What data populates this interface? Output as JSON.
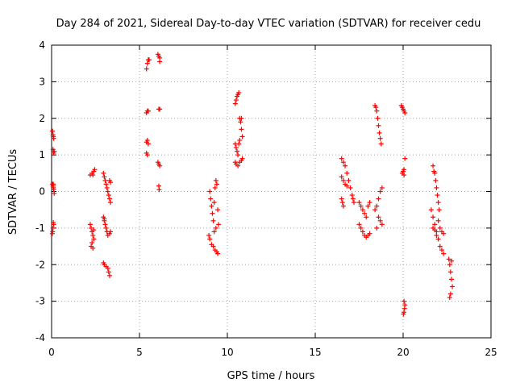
{
  "chart_data": {
    "type": "scatter",
    "title": "Day 284 of 2021, Sidereal Day-to-day VTEC variation (SDTVAR) for receiver cedu",
    "xlabel": "GPS time / hours",
    "ylabel": "SDTVAR / TECUs",
    "xlim": [
      0,
      25
    ],
    "ylim": [
      -4,
      4
    ],
    "x_ticks": [
      0,
      5,
      10,
      15,
      20,
      25
    ],
    "y_ticks": [
      -4,
      -3,
      -2,
      -1,
      0,
      1,
      2,
      3,
      4
    ],
    "grid": true,
    "marker": "plus",
    "color": "#ff0000",
    "series": [
      {
        "name": "SDTVAR",
        "points": [
          [
            0.05,
            1.65
          ],
          [
            0.08,
            1.55
          ],
          [
            0.1,
            1.5
          ],
          [
            0.12,
            1.45
          ],
          [
            0.08,
            1.15
          ],
          [
            0.1,
            1.1
          ],
          [
            0.12,
            1.05
          ],
          [
            0.15,
            1.1
          ],
          [
            0.05,
            0.2
          ],
          [
            0.08,
            0.15
          ],
          [
            0.1,
            0.1
          ],
          [
            0.12,
            0.05
          ],
          [
            0.15,
            -0.05
          ],
          [
            0.1,
            0.2
          ],
          [
            0.1,
            -0.85
          ],
          [
            0.12,
            -0.9
          ],
          [
            0.08,
            -1.0
          ],
          [
            0.06,
            -1.1
          ],
          [
            0.04,
            -1.15
          ],
          [
            2.2,
            0.45
          ],
          [
            2.3,
            0.5
          ],
          [
            2.4,
            0.55
          ],
          [
            2.45,
            0.6
          ],
          [
            2.35,
            0.45
          ],
          [
            2.2,
            -0.9
          ],
          [
            2.25,
            -1.0
          ],
          [
            2.3,
            -1.1
          ],
          [
            2.35,
            -1.2
          ],
          [
            2.4,
            -1.3
          ],
          [
            2.3,
            -1.4
          ],
          [
            2.25,
            -1.5
          ],
          [
            2.35,
            -1.55
          ],
          [
            2.4,
            -1.05
          ],
          [
            2.95,
            0.5
          ],
          [
            3.0,
            0.4
          ],
          [
            3.05,
            0.3
          ],
          [
            3.1,
            0.2
          ],
          [
            3.15,
            0.1
          ],
          [
            3.2,
            0.0
          ],
          [
            3.25,
            -0.1
          ],
          [
            3.3,
            -0.2
          ],
          [
            3.35,
            -0.3
          ],
          [
            3.3,
            0.3
          ],
          [
            3.35,
            0.25
          ],
          [
            2.95,
            -0.7
          ],
          [
            3.0,
            -0.8
          ],
          [
            3.05,
            -0.9
          ],
          [
            3.1,
            -1.0
          ],
          [
            3.15,
            -1.1
          ],
          [
            3.2,
            -1.2
          ],
          [
            3.3,
            -1.15
          ],
          [
            3.35,
            -1.1
          ],
          [
            3.0,
            -0.75
          ],
          [
            2.95,
            -1.95
          ],
          [
            3.0,
            -2.0
          ],
          [
            3.1,
            -2.05
          ],
          [
            3.2,
            -2.1
          ],
          [
            3.25,
            -2.2
          ],
          [
            3.3,
            -2.3
          ],
          [
            5.4,
            3.35
          ],
          [
            5.45,
            3.5
          ],
          [
            5.5,
            3.6
          ],
          [
            5.55,
            3.6
          ],
          [
            5.4,
            2.15
          ],
          [
            5.45,
            2.2
          ],
          [
            5.5,
            2.2
          ],
          [
            5.4,
            1.35
          ],
          [
            5.45,
            1.4
          ],
          [
            5.5,
            1.3
          ],
          [
            5.4,
            1.05
          ],
          [
            5.45,
            1.0
          ],
          [
            6.05,
            3.75
          ],
          [
            6.1,
            3.7
          ],
          [
            6.15,
            3.65
          ],
          [
            6.15,
            3.55
          ],
          [
            6.1,
            2.25
          ],
          [
            6.15,
            2.25
          ],
          [
            6.05,
            0.8
          ],
          [
            6.1,
            0.75
          ],
          [
            6.15,
            0.7
          ],
          [
            6.1,
            0.15
          ],
          [
            6.12,
            0.05
          ],
          [
            9.0,
            0.0
          ],
          [
            9.05,
            -0.2
          ],
          [
            9.1,
            -0.4
          ],
          [
            9.15,
            -0.6
          ],
          [
            9.2,
            -0.8
          ],
          [
            9.25,
            -0.3
          ],
          [
            9.3,
            0.1
          ],
          [
            9.35,
            0.3
          ],
          [
            9.4,
            0.2
          ],
          [
            9.45,
            -0.5
          ],
          [
            9.5,
            -0.9
          ],
          [
            8.95,
            -1.2
          ],
          [
            9.0,
            -1.3
          ],
          [
            9.1,
            -1.45
          ],
          [
            9.2,
            -1.5
          ],
          [
            9.3,
            -1.6
          ],
          [
            9.4,
            -1.65
          ],
          [
            9.45,
            -1.7
          ],
          [
            9.35,
            -1.0
          ],
          [
            9.25,
            -1.1
          ],
          [
            10.45,
            2.4
          ],
          [
            10.5,
            2.5
          ],
          [
            10.55,
            2.6
          ],
          [
            10.6,
            2.65
          ],
          [
            10.65,
            2.7
          ],
          [
            10.7,
            2.0
          ],
          [
            10.75,
            1.9
          ],
          [
            10.8,
            1.7
          ],
          [
            10.85,
            1.5
          ],
          [
            10.8,
            2.0
          ],
          [
            10.45,
            1.3
          ],
          [
            10.5,
            1.2
          ],
          [
            10.55,
            1.1
          ],
          [
            10.6,
            1.0
          ],
          [
            10.65,
            1.3
          ],
          [
            10.7,
            1.4
          ],
          [
            10.45,
            0.8
          ],
          [
            10.5,
            0.75
          ],
          [
            10.6,
            0.7
          ],
          [
            10.7,
            0.8
          ],
          [
            10.8,
            0.85
          ],
          [
            10.85,
            0.9
          ],
          [
            16.5,
            0.9
          ],
          [
            16.6,
            0.8
          ],
          [
            16.7,
            0.7
          ],
          [
            16.8,
            0.5
          ],
          [
            16.9,
            0.3
          ],
          [
            17.0,
            0.1
          ],
          [
            17.1,
            -0.1
          ],
          [
            17.15,
            -0.2
          ],
          [
            17.2,
            -0.3
          ],
          [
            16.5,
            0.4
          ],
          [
            16.6,
            0.3
          ],
          [
            16.7,
            0.2
          ],
          [
            16.8,
            0.15
          ],
          [
            16.5,
            -0.2
          ],
          [
            16.55,
            -0.3
          ],
          [
            16.6,
            -0.4
          ],
          [
            17.5,
            -0.3
          ],
          [
            17.6,
            -0.4
          ],
          [
            17.7,
            -0.5
          ],
          [
            17.8,
            -0.6
          ],
          [
            17.9,
            -0.7
          ],
          [
            18.0,
            -0.4
          ],
          [
            18.1,
            -0.3
          ],
          [
            17.5,
            -0.9
          ],
          [
            17.6,
            -1.0
          ],
          [
            17.7,
            -1.1
          ],
          [
            17.8,
            -1.2
          ],
          [
            17.9,
            -1.25
          ],
          [
            18.0,
            -1.2
          ],
          [
            18.1,
            -1.15
          ],
          [
            18.4,
            -0.5
          ],
          [
            18.5,
            -0.4
          ],
          [
            18.6,
            -0.2
          ],
          [
            18.7,
            0.0
          ],
          [
            18.8,
            0.1
          ],
          [
            18.6,
            -0.7
          ],
          [
            18.7,
            -0.8
          ],
          [
            18.8,
            -0.9
          ],
          [
            18.5,
            -1.0
          ],
          [
            18.4,
            2.35
          ],
          [
            18.45,
            2.3
          ],
          [
            18.5,
            2.2
          ],
          [
            18.55,
            2.0
          ],
          [
            18.6,
            1.8
          ],
          [
            18.65,
            1.6
          ],
          [
            18.7,
            1.45
          ],
          [
            18.75,
            1.3
          ],
          [
            19.9,
            2.35
          ],
          [
            19.95,
            2.3
          ],
          [
            20.0,
            2.25
          ],
          [
            20.05,
            2.2
          ],
          [
            20.1,
            2.15
          ],
          [
            19.95,
            0.5
          ],
          [
            20.0,
            0.55
          ],
          [
            20.05,
            0.6
          ],
          [
            20.1,
            0.9
          ],
          [
            20.05,
            0.45
          ],
          [
            20.05,
            -3.0
          ],
          [
            20.1,
            -3.1
          ],
          [
            20.08,
            -3.2
          ],
          [
            20.05,
            -3.3
          ],
          [
            20.02,
            -3.35
          ],
          [
            21.7,
            0.7
          ],
          [
            21.75,
            0.55
          ],
          [
            21.8,
            0.5
          ],
          [
            21.85,
            0.3
          ],
          [
            21.9,
            0.1
          ],
          [
            21.95,
            -0.1
          ],
          [
            22.0,
            -0.3
          ],
          [
            22.05,
            -0.5
          ],
          [
            21.6,
            -0.5
          ],
          [
            21.7,
            -0.7
          ],
          [
            21.8,
            -0.9
          ],
          [
            21.9,
            -1.1
          ],
          [
            22.0,
            -1.3
          ],
          [
            22.1,
            -1.5
          ],
          [
            22.2,
            -1.6
          ],
          [
            22.3,
            -1.7
          ],
          [
            21.7,
            -1.0
          ],
          [
            21.8,
            -1.05
          ],
          [
            21.9,
            -1.2
          ],
          [
            22.1,
            -1.0
          ],
          [
            22.2,
            -1.1
          ],
          [
            22.3,
            -1.15
          ],
          [
            22.0,
            -0.8
          ],
          [
            22.6,
            -1.85
          ],
          [
            22.65,
            -2.0
          ],
          [
            22.7,
            -2.2
          ],
          [
            22.75,
            -2.4
          ],
          [
            22.8,
            -2.6
          ],
          [
            22.7,
            -2.8
          ],
          [
            22.65,
            -2.9
          ],
          [
            22.75,
            -1.9
          ]
        ]
      }
    ]
  }
}
